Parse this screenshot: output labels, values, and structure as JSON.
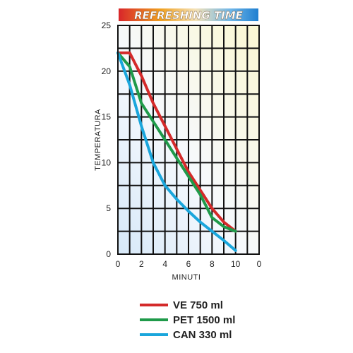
{
  "chart_data": {
    "type": "line",
    "title": "REFRESHING TIME",
    "xlabel": "MINUTI",
    "ylabel": "TEMPERATURA",
    "xlim": [
      0,
      12
    ],
    "ylim": [
      0,
      25
    ],
    "x_ticks": [
      "0",
      "2",
      "4",
      "6",
      "8",
      "10",
      "0"
    ],
    "y_ticks": [
      "0",
      "5",
      "10",
      "15",
      "20",
      "25"
    ],
    "grid": true,
    "legend_position": "bottom",
    "series": [
      {
        "name": "VE  750 ml",
        "color": "#d42a2a",
        "points": [
          [
            0,
            22
          ],
          [
            1,
            22
          ],
          [
            2,
            19.5
          ],
          [
            3,
            16.5
          ],
          [
            4,
            14
          ],
          [
            5,
            11.5
          ],
          [
            6,
            9
          ],
          [
            7,
            7
          ],
          [
            8,
            5
          ],
          [
            9,
            3.5
          ],
          [
            10,
            2.5
          ]
        ]
      },
      {
        "name": "PET 1500 ml",
        "color": "#1f9a4a",
        "points": [
          [
            0,
            22
          ],
          [
            1,
            20.5
          ],
          [
            2,
            16.5
          ],
          [
            3,
            14.5
          ],
          [
            4,
            12.5
          ],
          [
            5,
            10.5
          ],
          [
            6,
            8.5
          ],
          [
            7,
            6.5
          ],
          [
            8,
            4
          ],
          [
            9,
            3
          ],
          [
            10,
            2.5
          ]
        ]
      },
      {
        "name": "CAN 330 ml",
        "color": "#1aa6dc",
        "points": [
          [
            0,
            22
          ],
          [
            1,
            18.5
          ],
          [
            2,
            14
          ],
          [
            3,
            10
          ],
          [
            4,
            7.5
          ],
          [
            5,
            6
          ],
          [
            6,
            4.7
          ],
          [
            7,
            3.5
          ],
          [
            8,
            2.5
          ],
          [
            9,
            1.5
          ],
          [
            10,
            0.4
          ]
        ]
      }
    ]
  }
}
